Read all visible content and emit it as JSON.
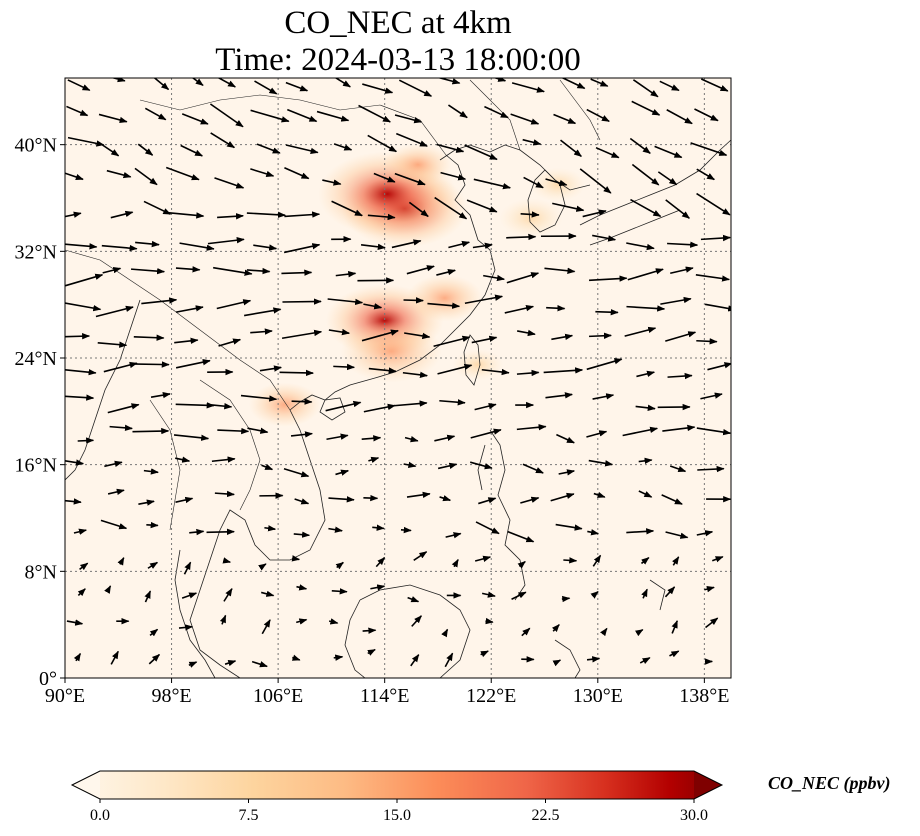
{
  "title": {
    "line1": "CO_NEC at 4km",
    "line2": "Time: 2024-03-13 18:00:00"
  },
  "map": {
    "lon_range": [
      90,
      140
    ],
    "lat_range": [
      0,
      45
    ],
    "lon_ticks": [
      "90°E",
      "98°E",
      "106°E",
      "114°E",
      "122°E",
      "130°E",
      "138°E"
    ],
    "lat_ticks": [
      "0°",
      "8°N",
      "16°N",
      "24°N",
      "32°N",
      "40°N"
    ],
    "gridlines": "dotted",
    "background_color": "#fff5ea"
  },
  "colorbar": {
    "label": "CO_NEC (ppbv)",
    "ticks": [
      "0.0",
      "7.5",
      "15.0",
      "22.5",
      "30.0"
    ],
    "range": [
      0,
      30
    ],
    "colormap": "OrRd",
    "extend": "both",
    "colors": [
      "#fff7ec",
      "#fee8c8",
      "#fdd49e",
      "#fdbb84",
      "#fc8d59",
      "#ef6548",
      "#d7301f",
      "#b30000",
      "#7f0000"
    ]
  },
  "hotspots": [
    {
      "name": "north-china-plain",
      "lon": 115.5,
      "lat": 35.2,
      "value": 24
    },
    {
      "name": "north-china-core",
      "lon": 114.2,
      "lat": 36.3,
      "value": 27
    },
    {
      "name": "central-china",
      "lon": 114.0,
      "lat": 26.8,
      "value": 22
    },
    {
      "name": "south-china",
      "lon": 114.5,
      "lat": 24.5,
      "value": 18
    },
    {
      "name": "yangtze-delta",
      "lon": 118.5,
      "lat": 28.5,
      "value": 12
    },
    {
      "name": "beijing-area",
      "lon": 116.5,
      "lat": 38.5,
      "value": 10
    },
    {
      "name": "northeast",
      "lon": 125.0,
      "lat": 34.5,
      "value": 9
    },
    {
      "name": "korea",
      "lon": 127.0,
      "lat": 37.0,
      "value": 7
    },
    {
      "name": "vietnam-north",
      "lon": 106.5,
      "lat": 20.5,
      "value": 11
    },
    {
      "name": "taiwan",
      "lon": 121.0,
      "lat": 23.5,
      "value": 6
    }
  ]
}
